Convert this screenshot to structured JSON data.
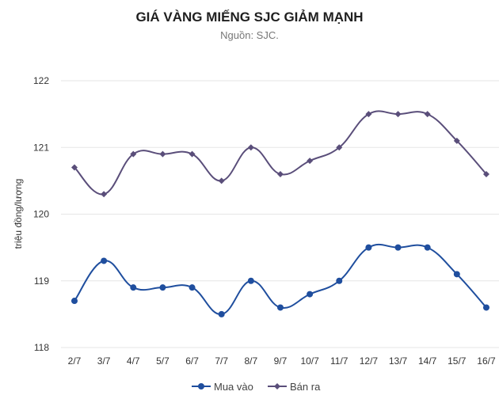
{
  "chart_data": {
    "type": "line",
    "title": "GIÁ VÀNG MIẾNG SJC GIẢM MẠNH",
    "subtitle": "Nguồn: SJC.",
    "xlabel": "",
    "ylabel": "triệu đồng/lượng",
    "ylim": [
      118,
      122
    ],
    "yticks": [
      118,
      119,
      120,
      121,
      122
    ],
    "grid": true,
    "legend_position": "bottom-center",
    "categories": [
      "2/7",
      "3/7",
      "4/7",
      "5/7",
      "6/7",
      "7/7",
      "8/7",
      "9/7",
      "10/7",
      "11/7",
      "12/7",
      "13/7",
      "14/7",
      "15/7",
      "16/7"
    ],
    "series": [
      {
        "name": "Mua vào",
        "color": "#1f4e9e",
        "marker": "circle",
        "values": [
          118.7,
          119.3,
          118.9,
          118.9,
          118.9,
          118.5,
          119.0,
          118.6,
          118.8,
          119.0,
          119.5,
          119.5,
          119.5,
          119.1,
          118.6
        ]
      },
      {
        "name": "Bán ra",
        "color": "#5a4e7a",
        "marker": "diamond",
        "values": [
          120.7,
          120.3,
          120.9,
          120.9,
          120.9,
          120.5,
          121.0,
          120.6,
          120.8,
          121.0,
          121.5,
          121.5,
          121.5,
          121.1,
          120.6
        ]
      }
    ]
  }
}
